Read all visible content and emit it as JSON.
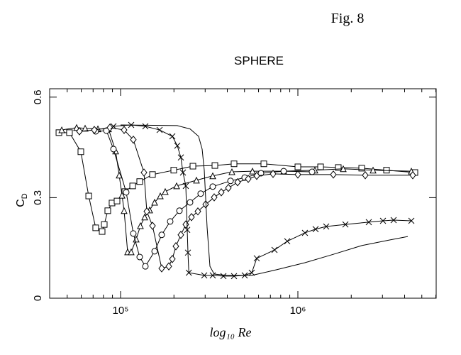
{
  "chart_data": {
    "type": "line",
    "annotation": "Fig. 8",
    "title": "SPHERE",
    "x_label": "log₁₀ Re",
    "y_label": {
      "text": "C",
      "subscript": "D"
    },
    "log_x": true,
    "xlim": [
      39811,
      6025596
    ],
    "ylim": [
      0,
      0.625
    ],
    "xticks": [
      {
        "value": 100000,
        "label": "10⁵"
      },
      {
        "value": 1000000,
        "label": "10⁶"
      }
    ],
    "xminor_ticks": [
      50000,
      60000,
      70000,
      80000,
      90000,
      200000,
      300000,
      400000,
      500000,
      600000,
      700000,
      800000,
      900000,
      2000000,
      3000000,
      4000000,
      5000000,
      6000000
    ],
    "yticks": [
      0,
      0.3,
      0.6
    ],
    "series": [
      {
        "marker": "square",
        "color": "#000000",
        "x": [
          44900,
          51500,
          59700,
          66100,
          72400,
          78700,
          80900,
          84700,
          89500,
          95500,
          105700,
          117000,
          128200,
          151400,
          199500,
          255900,
          340400,
          436500,
          642700,
          1000000,
          1343000,
          1690000,
          2291000,
          3162000,
          4571000
        ],
        "values": [
          0.494,
          0.494,
          0.437,
          0.305,
          0.21,
          0.199,
          0.22,
          0.261,
          0.284,
          0.29,
          0.318,
          0.335,
          0.348,
          0.369,
          0.382,
          0.394,
          0.396,
          0.401,
          0.401,
          0.392,
          0.392,
          0.39,
          0.388,
          0.382,
          0.375
        ]
      },
      {
        "marker": "triangle",
        "color": "#000000",
        "x": [
          46600,
          56500,
          63100,
          74500,
          85500,
          93800,
          98200,
          101900,
          104700,
          109600,
          114800,
          122500,
          129400,
          136800,
          145900,
          155600,
          167500,
          178600,
          207000,
          267900,
          331100,
          424600,
          554600,
          831800,
          1247000,
          1803000,
          2655000,
          4365000
        ],
        "values": [
          0.502,
          0.509,
          0.507,
          0.505,
          0.505,
          0.439,
          0.367,
          0.307,
          0.261,
          0.138,
          0.138,
          0.176,
          0.216,
          0.242,
          0.263,
          0.286,
          0.305,
          0.318,
          0.335,
          0.352,
          0.365,
          0.377,
          0.379,
          0.379,
          0.382,
          0.386,
          0.382,
          0.379
        ]
      },
      {
        "marker": "circle",
        "color": "#000000",
        "x": [
          72400,
          83200,
          91200,
          107600,
          118000,
          128200,
          138000,
          155600,
          170600,
          190500,
          214800,
          246600,
          283100,
          331100,
          416900,
          501200,
          619400,
          831800,
          1202000
        ],
        "values": [
          0.498,
          0.5,
          0.445,
          0.316,
          0.193,
          0.123,
          0.095,
          0.14,
          0.189,
          0.229,
          0.261,
          0.286,
          0.312,
          0.333,
          0.35,
          0.36,
          0.373,
          0.379,
          0.377
        ]
      },
      {
        "marker": "diamond",
        "color": "#000000",
        "x": [
          58600,
          71100,
          87100,
          104700,
          118000,
          135500,
          140600,
          151400,
          170600,
          187100,
          195900,
          205100,
          218800,
          233300,
          251200,
          272900,
          302000,
          337300,
          369800,
          405500,
          457100,
          524800,
          586100,
          724400,
          1000000,
          1585000,
          2399000,
          4446000
        ],
        "values": [
          0.498,
          0.502,
          0.509,
          0.502,
          0.473,
          0.375,
          0.259,
          0.216,
          0.089,
          0.095,
          0.117,
          0.155,
          0.189,
          0.22,
          0.242,
          0.259,
          0.28,
          0.301,
          0.316,
          0.329,
          0.346,
          0.356,
          0.365,
          0.371,
          0.369,
          0.369,
          0.367,
          0.367
        ]
      },
      {
        "marker": "cross",
        "color": "#000000",
        "x": [
          91200,
          114800,
          138000,
          166000,
          195900,
          208900,
          218800,
          224900,
          233300,
          237700,
          239900,
          242700,
          296500,
          331100,
          380200,
          436500,
          501200,
          549500,
          586100,
          738000,
          871000,
          1096000,
          1259000,
          1445000,
          1854000,
          2512000,
          3020000,
          3467000,
          4365000
        ],
        "values": [
          0.513,
          0.517,
          0.513,
          0.502,
          0.483,
          0.455,
          0.42,
          0.375,
          0.335,
          0.204,
          0.136,
          0.076,
          0.068,
          0.068,
          0.066,
          0.066,
          0.068,
          0.076,
          0.119,
          0.144,
          0.17,
          0.195,
          0.206,
          0.214,
          0.22,
          0.227,
          0.231,
          0.233,
          0.231
        ]
      },
      {
        "marker": "none",
        "color": "#000000",
        "x": [
          100000,
          208900,
          246600,
          275400,
          288400,
          296500,
          307600,
          319200,
          337300,
          398100,
          549500,
          758600,
          1096000,
          1585000,
          2291000,
          3311000,
          4169000
        ],
        "values": [
          0.517,
          0.515,
          0.505,
          0.483,
          0.445,
          0.382,
          0.212,
          0.095,
          0.072,
          0.068,
          0.068,
          0.085,
          0.106,
          0.131,
          0.157,
          0.174,
          0.184
        ]
      }
    ]
  }
}
